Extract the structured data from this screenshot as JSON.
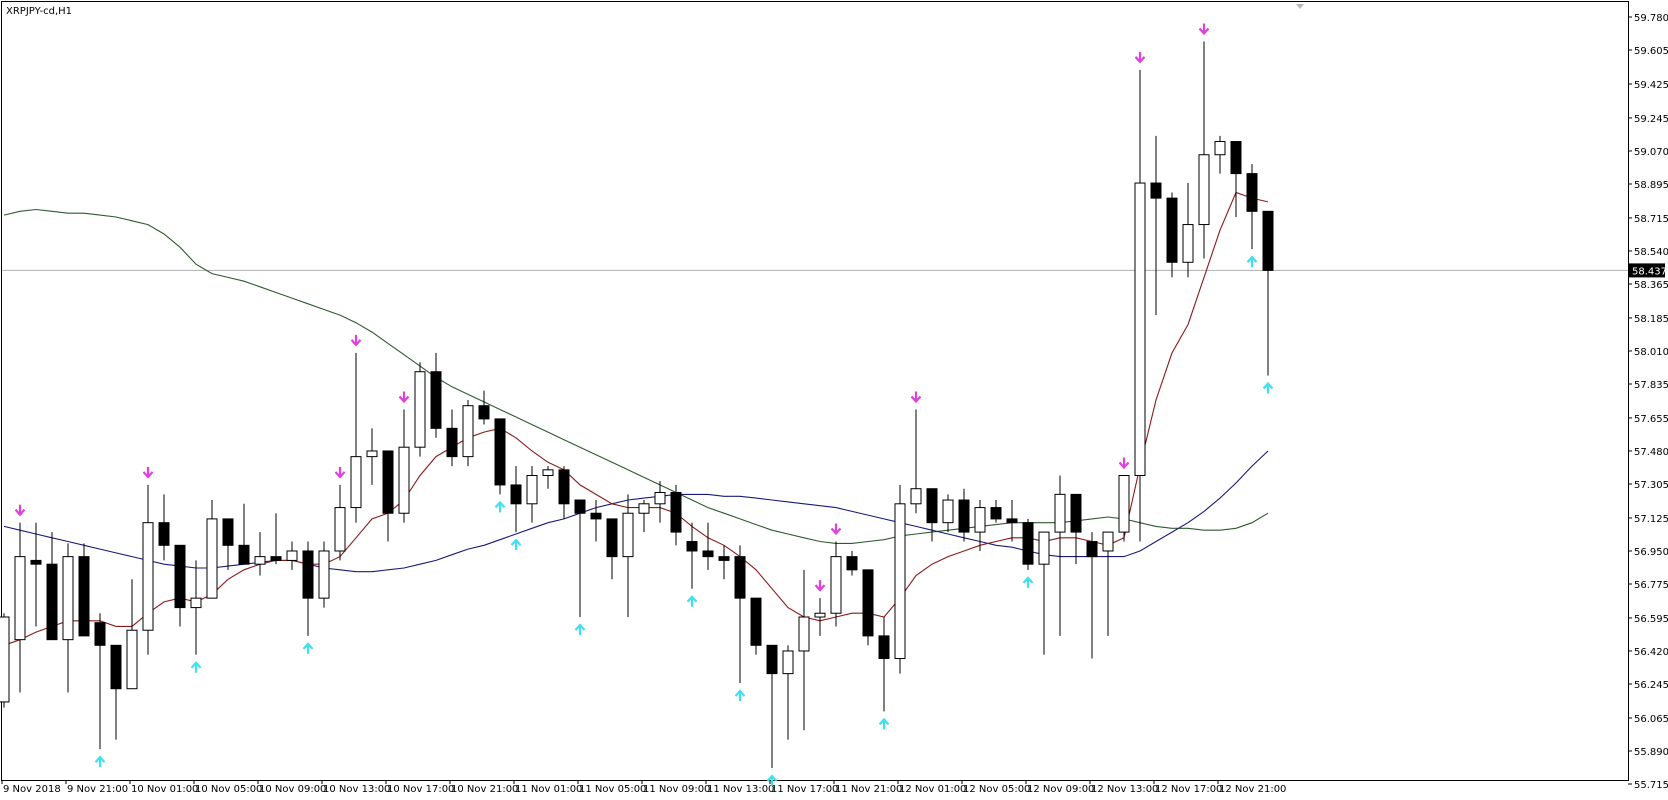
{
  "chart_data": {
    "type": "candlestick",
    "title": "XRPJPY-cd,H1",
    "current_price_label": "58.437",
    "y_ticks": [
      "59.780",
      "59.605",
      "59.425",
      "59.245",
      "59.070",
      "58.895",
      "58.715",
      "58.540",
      "58.365",
      "58.185",
      "58.010",
      "57.835",
      "57.655",
      "57.480",
      "57.305",
      "57.125",
      "56.950",
      "56.775",
      "56.595",
      "56.420",
      "56.245",
      "56.065",
      "55.890",
      "55.715"
    ],
    "x_ticks": [
      "9 Nov 2018",
      "9 Nov 21:00",
      "10 Nov 01:00",
      "10 Nov 05:00",
      "10 Nov 09:00",
      "10 Nov 13:00",
      "10 Nov 17:00",
      "10 Nov 21:00",
      "11 Nov 01:00",
      "11 Nov 05:00",
      "11 Nov 09:00",
      "11 Nov 13:00",
      "11 Nov 17:00",
      "11 Nov 21:00",
      "12 Nov 01:00",
      "12 Nov 05:00",
      "12 Nov 09:00",
      "12 Nov 13:00",
      "12 Nov 17:00",
      "12 Nov 21:00"
    ],
    "ylim": [
      55.715,
      59.78
    ],
    "colors": {
      "bull_body": "#ffffff",
      "bear_body": "#000000",
      "wick": "#000000",
      "fast_ma": "#8b1a1a",
      "mid_ma": "#1a1a7a",
      "slow_ma": "#2f5a2f",
      "arrow_down": "#e040e0",
      "arrow_up": "#40e0f0",
      "price_line": "#b0b0b0"
    },
    "candles": [
      {
        "o": 56.15,
        "h": 56.62,
        "l": 56.12,
        "c": 56.6,
        "arrow": ""
      },
      {
        "o": 56.48,
        "h": 57.1,
        "l": 56.2,
        "c": 56.92,
        "arrow": "down"
      },
      {
        "o": 56.9,
        "h": 57.1,
        "l": 56.55,
        "c": 56.88,
        "arrow": ""
      },
      {
        "o": 56.88,
        "h": 57.05,
        "l": 56.48,
        "c": 56.48,
        "arrow": ""
      },
      {
        "o": 56.48,
        "h": 56.99,
        "l": 56.2,
        "c": 56.92,
        "arrow": ""
      },
      {
        "o": 56.92,
        "h": 56.99,
        "l": 56.5,
        "c": 56.5,
        "arrow": ""
      },
      {
        "o": 56.57,
        "h": 56.62,
        "l": 55.9,
        "c": 56.45,
        "arrow": "up"
      },
      {
        "o": 56.45,
        "h": 56.45,
        "l": 55.95,
        "c": 56.22,
        "arrow": ""
      },
      {
        "o": 56.22,
        "h": 56.8,
        "l": 56.22,
        "c": 56.53,
        "arrow": ""
      },
      {
        "o": 56.53,
        "h": 57.3,
        "l": 56.4,
        "c": 57.1,
        "arrow": "down"
      },
      {
        "o": 57.1,
        "h": 57.25,
        "l": 56.9,
        "c": 56.98,
        "arrow": ""
      },
      {
        "o": 56.98,
        "h": 56.98,
        "l": 56.55,
        "c": 56.65,
        "arrow": ""
      },
      {
        "o": 56.65,
        "h": 56.9,
        "l": 56.4,
        "c": 56.7,
        "arrow": "up"
      },
      {
        "o": 56.7,
        "h": 57.22,
        "l": 56.7,
        "c": 57.12,
        "arrow": ""
      },
      {
        "o": 57.12,
        "h": 57.12,
        "l": 56.85,
        "c": 56.98,
        "arrow": ""
      },
      {
        "o": 56.98,
        "h": 57.2,
        "l": 56.88,
        "c": 56.88,
        "arrow": ""
      },
      {
        "o": 56.88,
        "h": 57.05,
        "l": 56.82,
        "c": 56.92,
        "arrow": ""
      },
      {
        "o": 56.92,
        "h": 57.15,
        "l": 56.88,
        "c": 56.9,
        "arrow": ""
      },
      {
        "o": 56.9,
        "h": 57.0,
        "l": 56.85,
        "c": 56.95,
        "arrow": ""
      },
      {
        "o": 56.95,
        "h": 57.0,
        "l": 56.5,
        "c": 56.7,
        "arrow": "up"
      },
      {
        "o": 56.7,
        "h": 57.0,
        "l": 56.65,
        "c": 56.95,
        "arrow": ""
      },
      {
        "o": 56.95,
        "h": 57.3,
        "l": 56.9,
        "c": 57.18,
        "arrow": "down"
      },
      {
        "o": 57.18,
        "h": 58.0,
        "l": 57.1,
        "c": 57.45,
        "arrow": "down"
      },
      {
        "o": 57.45,
        "h": 57.6,
        "l": 57.3,
        "c": 57.48,
        "arrow": ""
      },
      {
        "o": 57.48,
        "h": 57.48,
        "l": 57.0,
        "c": 57.15,
        "arrow": ""
      },
      {
        "o": 57.15,
        "h": 57.7,
        "l": 57.1,
        "c": 57.5,
        "arrow": "down"
      },
      {
        "o": 57.5,
        "h": 57.95,
        "l": 57.45,
        "c": 57.9,
        "arrow": ""
      },
      {
        "o": 57.9,
        "h": 58.0,
        "l": 57.55,
        "c": 57.6,
        "arrow": ""
      },
      {
        "o": 57.6,
        "h": 57.7,
        "l": 57.4,
        "c": 57.45,
        "arrow": ""
      },
      {
        "o": 57.45,
        "h": 57.75,
        "l": 57.4,
        "c": 57.72,
        "arrow": ""
      },
      {
        "o": 57.72,
        "h": 57.8,
        "l": 57.62,
        "c": 57.65,
        "arrow": ""
      },
      {
        "o": 57.65,
        "h": 57.65,
        "l": 57.25,
        "c": 57.3,
        "arrow": "up"
      },
      {
        "o": 57.3,
        "h": 57.4,
        "l": 57.05,
        "c": 57.2,
        "arrow": "up"
      },
      {
        "o": 57.2,
        "h": 57.4,
        "l": 57.1,
        "c": 57.35,
        "arrow": ""
      },
      {
        "o": 57.35,
        "h": 57.4,
        "l": 57.28,
        "c": 57.38,
        "arrow": ""
      },
      {
        "o": 57.38,
        "h": 57.4,
        "l": 57.12,
        "c": 57.2,
        "arrow": ""
      },
      {
        "o": 57.22,
        "h": 57.22,
        "l": 56.6,
        "c": 57.15,
        "arrow": "up"
      },
      {
        "o": 57.15,
        "h": 57.22,
        "l": 57.0,
        "c": 57.12,
        "arrow": ""
      },
      {
        "o": 57.12,
        "h": 57.12,
        "l": 56.8,
        "c": 56.92,
        "arrow": ""
      },
      {
        "o": 56.92,
        "h": 57.25,
        "l": 56.6,
        "c": 57.15,
        "arrow": ""
      },
      {
        "o": 57.15,
        "h": 57.22,
        "l": 57.05,
        "c": 57.2,
        "arrow": ""
      },
      {
        "o": 57.2,
        "h": 57.32,
        "l": 57.1,
        "c": 57.26,
        "arrow": ""
      },
      {
        "o": 57.26,
        "h": 57.3,
        "l": 56.98,
        "c": 57.05,
        "arrow": ""
      },
      {
        "o": 57.0,
        "h": 57.1,
        "l": 56.75,
        "c": 56.95,
        "arrow": "up"
      },
      {
        "o": 56.95,
        "h": 57.1,
        "l": 56.85,
        "c": 56.92,
        "arrow": ""
      },
      {
        "o": 56.92,
        "h": 56.98,
        "l": 56.8,
        "c": 56.9,
        "arrow": ""
      },
      {
        "o": 56.92,
        "h": 56.98,
        "l": 56.25,
        "c": 56.7,
        "arrow": "up"
      },
      {
        "o": 56.7,
        "h": 56.7,
        "l": 56.4,
        "c": 56.45,
        "arrow": ""
      },
      {
        "o": 56.45,
        "h": 56.45,
        "l": 55.8,
        "c": 56.3,
        "arrow": "up"
      },
      {
        "o": 56.3,
        "h": 56.45,
        "l": 55.95,
        "c": 56.42,
        "arrow": ""
      },
      {
        "o": 56.42,
        "h": 56.85,
        "l": 56.0,
        "c": 56.6,
        "arrow": ""
      },
      {
        "o": 56.6,
        "h": 56.7,
        "l": 56.5,
        "c": 56.62,
        "arrow": "down"
      },
      {
        "o": 56.62,
        "h": 57.0,
        "l": 56.55,
        "c": 56.92,
        "arrow": "down"
      },
      {
        "o": 56.92,
        "h": 56.95,
        "l": 56.82,
        "c": 56.85,
        "arrow": ""
      },
      {
        "o": 56.85,
        "h": 56.85,
        "l": 56.45,
        "c": 56.5,
        "arrow": ""
      },
      {
        "o": 56.5,
        "h": 56.6,
        "l": 56.1,
        "c": 56.38,
        "arrow": "up"
      },
      {
        "o": 56.38,
        "h": 57.3,
        "l": 56.3,
        "c": 57.2,
        "arrow": ""
      },
      {
        "o": 57.2,
        "h": 57.7,
        "l": 57.15,
        "c": 57.28,
        "arrow": "down"
      },
      {
        "o": 57.28,
        "h": 57.28,
        "l": 57.0,
        "c": 57.1,
        "arrow": ""
      },
      {
        "o": 57.1,
        "h": 57.25,
        "l": 57.05,
        "c": 57.22,
        "arrow": ""
      },
      {
        "o": 57.22,
        "h": 57.28,
        "l": 57.0,
        "c": 57.05,
        "arrow": ""
      },
      {
        "o": 57.05,
        "h": 57.22,
        "l": 56.95,
        "c": 57.18,
        "arrow": ""
      },
      {
        "o": 57.18,
        "h": 57.22,
        "l": 57.1,
        "c": 57.12,
        "arrow": ""
      },
      {
        "o": 57.12,
        "h": 57.22,
        "l": 57.0,
        "c": 57.1,
        "arrow": ""
      },
      {
        "o": 57.1,
        "h": 57.12,
        "l": 56.85,
        "c": 56.88,
        "arrow": "up"
      },
      {
        "o": 56.88,
        "h": 57.05,
        "l": 56.4,
        "c": 57.05,
        "arrow": ""
      },
      {
        "o": 57.05,
        "h": 57.35,
        "l": 56.5,
        "c": 57.25,
        "arrow": ""
      },
      {
        "o": 57.25,
        "h": 57.25,
        "l": 56.88,
        "c": 57.05,
        "arrow": ""
      },
      {
        "o": 57.0,
        "h": 57.05,
        "l": 56.38,
        "c": 56.92,
        "arrow": ""
      },
      {
        "o": 56.95,
        "h": 57.05,
        "l": 56.5,
        "c": 57.05,
        "arrow": ""
      },
      {
        "o": 57.05,
        "h": 57.35,
        "l": 57.0,
        "c": 57.35,
        "arrow": "down"
      },
      {
        "o": 57.35,
        "h": 59.5,
        "l": 57.0,
        "c": 58.9,
        "arrow": "down"
      },
      {
        "o": 58.9,
        "h": 59.15,
        "l": 58.2,
        "c": 58.82,
        "arrow": ""
      },
      {
        "o": 58.82,
        "h": 58.85,
        "l": 58.4,
        "c": 58.48,
        "arrow": ""
      },
      {
        "o": 58.48,
        "h": 58.9,
        "l": 58.4,
        "c": 58.68,
        "arrow": ""
      },
      {
        "o": 58.68,
        "h": 59.65,
        "l": 58.5,
        "c": 59.05,
        "arrow": "down"
      },
      {
        "o": 59.05,
        "h": 59.15,
        "l": 58.95,
        "c": 59.12,
        "arrow": ""
      },
      {
        "o": 59.12,
        "h": 59.12,
        "l": 58.72,
        "c": 58.95,
        "arrow": ""
      },
      {
        "o": 58.95,
        "h": 59.0,
        "l": 58.55,
        "c": 58.75,
        "arrow": "up"
      },
      {
        "o": 58.75,
        "h": 58.75,
        "l": 57.88,
        "c": 58.437,
        "arrow": "up"
      }
    ],
    "fast_ma": [
      56.45,
      56.48,
      56.52,
      56.55,
      56.58,
      56.58,
      56.58,
      56.55,
      56.55,
      56.62,
      56.68,
      56.7,
      56.68,
      56.72,
      56.8,
      56.85,
      56.88,
      56.9,
      56.9,
      56.88,
      56.88,
      56.92,
      57.02,
      57.12,
      57.15,
      57.22,
      57.35,
      57.45,
      57.5,
      57.55,
      57.58,
      57.6,
      57.55,
      57.48,
      57.42,
      57.38,
      57.3,
      57.25,
      57.2,
      57.18,
      57.18,
      57.18,
      57.15,
      57.08,
      57.02,
      56.98,
      56.92,
      56.85,
      56.75,
      56.65,
      56.6,
      56.58,
      56.6,
      56.62,
      56.62,
      56.6,
      56.7,
      56.82,
      56.88,
      56.92,
      56.95,
      56.98,
      57.0,
      57.02,
      57.02,
      57.0,
      57.02,
      57.02,
      57.0,
      56.98,
      57.02,
      57.4,
      57.75,
      58.0,
      58.15,
      58.4,
      58.65,
      58.85,
      58.82,
      58.8
    ],
    "mid_ma": [
      57.08,
      57.06,
      57.04,
      57.02,
      57.0,
      56.98,
      56.96,
      56.94,
      56.92,
      56.9,
      56.88,
      56.87,
      56.86,
      56.86,
      56.87,
      56.88,
      56.89,
      56.9,
      56.9,
      56.88,
      56.86,
      56.85,
      56.84,
      56.84,
      56.85,
      56.86,
      56.88,
      56.9,
      56.93,
      56.96,
      56.98,
      57.01,
      57.04,
      57.07,
      57.1,
      57.12,
      57.15,
      57.18,
      57.2,
      57.22,
      57.23,
      57.24,
      57.25,
      57.25,
      57.25,
      57.24,
      57.24,
      57.23,
      57.22,
      57.21,
      57.2,
      57.19,
      57.18,
      57.16,
      57.14,
      57.12,
      57.1,
      57.08,
      57.06,
      57.04,
      57.02,
      57.0,
      56.98,
      56.97,
      56.95,
      56.93,
      56.92,
      56.92,
      56.92,
      56.92,
      56.92,
      56.95,
      57.0,
      57.05,
      57.1,
      57.16,
      57.23,
      57.31,
      57.4,
      57.48
    ],
    "slow_ma": [
      58.73,
      58.75,
      58.76,
      58.75,
      58.74,
      58.74,
      58.73,
      58.72,
      58.7,
      58.68,
      58.63,
      58.56,
      58.47,
      58.42,
      58.4,
      58.38,
      58.35,
      58.32,
      58.29,
      58.26,
      58.23,
      58.2,
      58.16,
      58.11,
      58.05,
      57.99,
      57.93,
      57.87,
      57.82,
      57.78,
      57.74,
      57.7,
      57.66,
      57.62,
      57.58,
      57.54,
      57.5,
      57.46,
      57.42,
      57.38,
      57.34,
      57.3,
      57.26,
      57.22,
      57.18,
      57.15,
      57.12,
      57.09,
      57.06,
      57.04,
      57.02,
      57.0,
      56.99,
      56.99,
      57.0,
      57.01,
      57.03,
      57.04,
      57.05,
      57.06,
      57.07,
      57.08,
      57.09,
      57.1,
      57.1,
      57.1,
      57.1,
      57.11,
      57.12,
      57.13,
      57.12,
      57.1,
      57.08,
      57.07,
      57.07,
      57.06,
      57.06,
      57.07,
      57.1,
      57.15
    ]
  }
}
